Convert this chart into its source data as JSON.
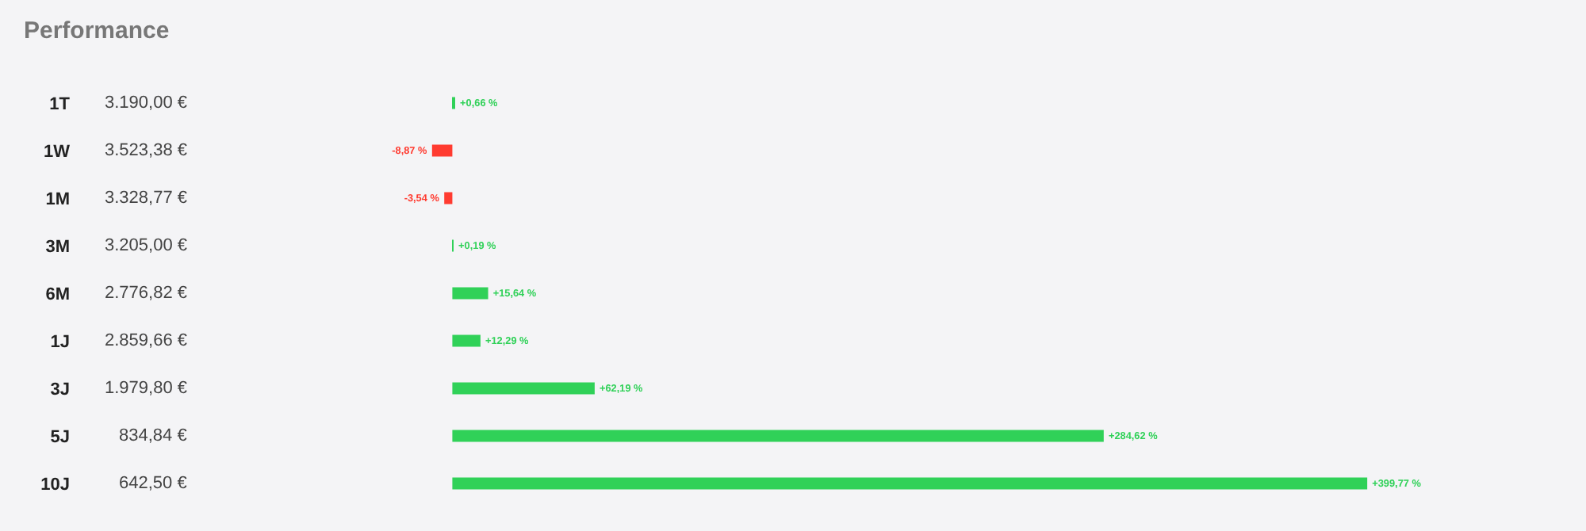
{
  "chart_data": {
    "type": "bar",
    "orientation": "horizontal",
    "title": "Performance",
    "categories": [
      "1T",
      "1W",
      "1M",
      "3M",
      "6M",
      "1J",
      "3J",
      "5J",
      "10J"
    ],
    "values": [
      0.66,
      -8.87,
      -3.54,
      0.19,
      15.64,
      12.29,
      62.19,
      284.62,
      399.77
    ],
    "colors": [
      "#30d158",
      "#ff3b30",
      "#ff3b30",
      "#30d158",
      "#30d158",
      "#30d158",
      "#30d158",
      "#30d158",
      "#30d158"
    ],
    "value_labels": [
      "+0,66 %",
      "-8,87 %",
      "-3,54 %",
      "+0,19 %",
      "+15,64 %",
      "+12,29 %",
      "+62,19 %",
      "+284,62 %",
      "+399,77 %"
    ],
    "annotations": [
      "3.190,00 €",
      "3.523,38 €",
      "3.328,77 €",
      "3.205,00 €",
      "2.776,82 €",
      "2.859,66 €",
      "1.979,80 €",
      "834,84 €",
      "642,50 €"
    ],
    "grid": false
  }
}
